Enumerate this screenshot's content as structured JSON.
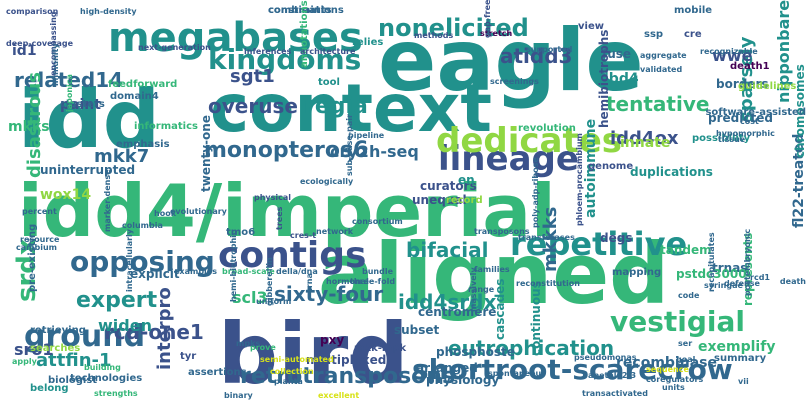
{
  "palette": {
    "dark": "#3b528b",
    "teal": "#21918c",
    "green": "#35b779",
    "blue": "#31688e",
    "purple": "#440154",
    "lime": "#90d743",
    "yellow": "#d8e219"
  },
  "words": [
    {
      "text": "idd4/imperial",
      "color": "#35b779",
      "rot": 0
    },
    {
      "text": "bird",
      "color": "#3b528b",
      "rot": 0
    },
    {
      "text": "aligned",
      "color": "#35b779",
      "rot": 0
    },
    {
      "text": "eagle",
      "color": "#21918c",
      "rot": 0
    },
    {
      "text": "idd",
      "color": "#21918c",
      "rot": 0
    },
    {
      "text": "context",
      "color": "#21918c",
      "rot": 0
    },
    {
      "text": "megabases",
      "color": "#21918c",
      "rot": 0
    },
    {
      "text": "contigs",
      "color": "#3b528b",
      "rot": 0
    },
    {
      "text": "lineage",
      "color": "#3b528b",
      "rot": 0
    },
    {
      "text": "repetitive",
      "color": "#21918c",
      "rot": 0
    },
    {
      "text": "shortroot-scarecrow",
      "color": "#31688e",
      "rot": 0
    },
    {
      "text": "dedicates",
      "color": "#90d743",
      "rot": 0
    },
    {
      "text": "kingdoms",
      "color": "#21918c",
      "rot": 0
    },
    {
      "text": "nonelicited",
      "color": "#21918c",
      "rot": 0
    },
    {
      "text": "ground",
      "color": "#31688e",
      "rot": 0
    },
    {
      "text": "opposing",
      "color": "#31688e",
      "rot": 0
    },
    {
      "text": "vestigial",
      "color": "#35b779",
      "rot": 0
    },
    {
      "text": "srdx",
      "color": "#35b779",
      "rot": -90
    },
    {
      "text": "expert",
      "color": "#21918c",
      "rot": 0
    },
    {
      "text": "monopteros6",
      "color": "#31688e",
      "rot": 0
    },
    {
      "text": "retrotransposons",
      "color": "#31688e",
      "rot": 0
    },
    {
      "text": "eutrophication",
      "color": "#21918c",
      "rot": 0
    },
    {
      "text": "sixty-four",
      "color": "#31688e",
      "rot": 0
    },
    {
      "text": "related14",
      "color": "#31688e",
      "rot": 0
    },
    {
      "text": "idd4srdx",
      "color": "#21918c",
      "rot": 0
    },
    {
      "text": "bifacial",
      "color": "#21918c",
      "rot": 0
    },
    {
      "text": "rcd-one1",
      "color": "#3b528b",
      "rot": 0
    },
    {
      "text": "regia",
      "color": "#21918c",
      "rot": 0
    },
    {
      "text": "overuse",
      "color": "#3b528b",
      "rot": 0
    },
    {
      "text": "tentative",
      "color": "#35b779",
      "rot": 0
    },
    {
      "text": "sparsely",
      "color": "#21918c",
      "rot": -90
    },
    {
      "text": "nipponbare",
      "color": "#21918c",
      "rot": -90
    },
    {
      "text": "atidd3",
      "color": "#3b528b",
      "rot": 0
    },
    {
      "text": "wwe",
      "color": "#3b528b",
      "rot": 0
    },
    {
      "text": "idd4ox",
      "color": "#3b528b",
      "rot": 0
    },
    {
      "text": "mkkks",
      "color": "#31688e",
      "rot": -90
    },
    {
      "text": "interpro",
      "color": "#3b528b",
      "rot": -90
    },
    {
      "text": "disastrous",
      "color": "#35b779",
      "rot": -90
    },
    {
      "text": "cry2h-seq",
      "color": "#31688e",
      "rot": 0
    },
    {
      "text": "sgt1",
      "color": "#3b528b",
      "rot": 0
    },
    {
      "text": "mkk7",
      "color": "#31688e",
      "rot": 0
    },
    {
      "text": "wox14",
      "color": "#90d743",
      "rot": 0
    },
    {
      "text": "widen",
      "color": "#21918c",
      "rot": 0
    },
    {
      "text": "paint",
      "color": "#3b528b",
      "rot": 0
    },
    {
      "text": "scl3",
      "color": "#35b779",
      "rot": 0
    },
    {
      "text": "attfin-1",
      "color": "#21918c",
      "rot": 0
    },
    {
      "text": "sro1",
      "color": "#3b528b",
      "rot": 0
    },
    {
      "text": "lbd4",
      "color": "#21918c",
      "rot": 0
    },
    {
      "text": "mkks",
      "color": "#35b779",
      "rot": 0
    },
    {
      "text": "id1",
      "color": "#3b528b",
      "rot": 0
    },
    {
      "text": "pxy",
      "color": "#440154",
      "rot": 0
    },
    {
      "text": "innate",
      "color": "#90d743",
      "rot": 0
    },
    {
      "text": "autoimmune",
      "color": "#21918c",
      "rot": -90
    },
    {
      "text": "multiplexed",
      "color": "#3b528b",
      "rot": 0
    },
    {
      "text": "trnas",
      "color": "#31688e",
      "rot": 0
    },
    {
      "text": "duplications",
      "color": "#21918c",
      "rot": 0
    },
    {
      "text": "uninterrupted",
      "color": "#31688e",
      "rot": 0
    },
    {
      "text": "pstdc3000",
      "color": "#35b779",
      "rot": 0
    },
    {
      "text": "fl22-treated",
      "color": "#31688e",
      "rot": -90
    },
    {
      "text": "chromosomes",
      "color": "#21918c",
      "rot": -90
    },
    {
      "text": "exemplify",
      "color": "#35b779",
      "rot": 0
    },
    {
      "text": "recombinase",
      "color": "#31688e",
      "rot": 0
    },
    {
      "text": "centromere",
      "color": "#31688e",
      "rot": 0
    },
    {
      "text": "phosphoste",
      "color": "#31688e",
      "rot": 0
    },
    {
      "text": "arranged",
      "color": "#31688e",
      "rot": 0
    },
    {
      "text": "physiology",
      "color": "#31688e",
      "rot": 0
    },
    {
      "text": "cascades",
      "color": "#21918c",
      "rot": -90
    },
    {
      "text": "continuous",
      "color": "#21918c",
      "rot": -90
    },
    {
      "text": "degs",
      "color": "#3b528b",
      "rot": 0
    },
    {
      "text": "tandem",
      "color": "#35b779",
      "rot": 0
    },
    {
      "text": "represents",
      "color": "#35b779",
      "rot": -90
    },
    {
      "text": "summary",
      "color": "#31688e",
      "rot": 0
    },
    {
      "text": "fuse",
      "color": "#31688e",
      "rot": 0
    },
    {
      "text": "borders",
      "color": "#31688e",
      "rot": 0
    },
    {
      "text": "predicted",
      "color": "#31688e",
      "rot": 0
    },
    {
      "text": "genome",
      "color": "#3b528b",
      "rot": 0
    },
    {
      "text": "revolution",
      "color": "#35b779",
      "rot": 0
    },
    {
      "text": "possibility",
      "color": "#21918c",
      "rot": 0
    },
    {
      "text": "hemibiotrophs",
      "color": "#3b528b",
      "rot": -90
    },
    {
      "text": "cre",
      "color": "#3b528b",
      "rot": 0
    },
    {
      "text": "ssp",
      "color": "#31688e",
      "rot": 0
    },
    {
      "text": "view",
      "color": "#3b528b",
      "rot": 0
    },
    {
      "text": "relies",
      "color": "#21918c",
      "rot": 0
    },
    {
      "text": "tool",
      "color": "#21918c",
      "rot": 0
    },
    {
      "text": "feedforward",
      "color": "#35b779",
      "rot": 0
    },
    {
      "text": "clusters",
      "color": "#31688e",
      "rot": 0
    },
    {
      "text": "domain4",
      "color": "#31688e",
      "rot": 0
    },
    {
      "text": "informatics",
      "color": "#35b779",
      "rot": 0
    },
    {
      "text": "emphasis",
      "color": "#31688e",
      "rot": 0
    },
    {
      "text": "twenty-one",
      "color": "#31688e",
      "rot": -90
    },
    {
      "text": "tmo6",
      "color": "#31688e",
      "rot": 0
    },
    {
      "text": "curators",
      "color": "#3b528b",
      "rot": 0
    },
    {
      "text": "unequal",
      "color": "#3b528b",
      "rot": 0
    },
    {
      "text": "record",
      "color": "#90d743",
      "rot": 0
    },
    {
      "text": "en",
      "color": "#21918c",
      "rot": 0
    },
    {
      "text": "subset",
      "color": "#31688e",
      "rot": 0
    },
    {
      "text": "explicit",
      "color": "#31688e",
      "rot": 0
    },
    {
      "text": "tyr",
      "color": "#3b528b",
      "rot": 0
    },
    {
      "text": "mkk-mpk",
      "color": "#3b528b",
      "rot": 0
    },
    {
      "text": "assertions",
      "color": "#31688e",
      "rot": 0
    },
    {
      "text": "biologist",
      "color": "#31688e",
      "rot": 0
    },
    {
      "text": "belong",
      "color": "#21918c",
      "rot": 0
    },
    {
      "text": "technologies",
      "color": "#31688e",
      "rot": 0
    },
    {
      "text": "pre-existing",
      "color": "#31688e",
      "rot": -90
    },
    {
      "text": "searches",
      "color": "#90d743",
      "rot": 0
    },
    {
      "text": "mapping",
      "color": "#31688e",
      "rot": 0
    },
    {
      "text": "death1",
      "color": "#440154",
      "rot": 0
    },
    {
      "text": "guidelines",
      "color": "#90d743",
      "rot": 0
    },
    {
      "text": "software-assisted",
      "color": "#31688e",
      "rot": 0
    },
    {
      "text": "combinations",
      "color": "#31688e",
      "rot": 0
    },
    {
      "text": "constraints",
      "color": "#31688e",
      "rot": 0
    },
    {
      "text": "annotations",
      "color": "#35b779",
      "rot": -90
    },
    {
      "text": "mobile",
      "color": "#31688e",
      "rot": 0
    },
    {
      "text": "retrieving",
      "color": "#31688e",
      "rot": 0
    },
    {
      "text": "comparison",
      "color": "#3b528b",
      "rot": 0
    },
    {
      "text": "deep-coverage",
      "color": "#3b528b",
      "rot": 0
    },
    {
      "text": "next-generation",
      "color": "#3b528b",
      "rot": 0
    },
    {
      "text": "inferences",
      "color": "#3b528b",
      "rot": 0
    },
    {
      "text": "architecture",
      "color": "#3b528b",
      "rot": 0
    },
    {
      "text": "methods",
      "color": "#3b528b",
      "rot": 0
    },
    {
      "text": "stretch",
      "color": "#440154",
      "rot": 0
    },
    {
      "text": "screenings",
      "color": "#31688e",
      "rot": 0
    },
    {
      "text": "supported",
      "color": "#31688e",
      "rot": 0
    },
    {
      "text": "hypomorphic",
      "color": "#31688e",
      "rot": 0
    },
    {
      "text": "cost",
      "color": "#31688e",
      "rot": 0
    },
    {
      "text": "tissue",
      "color": "#31688e",
      "rot": 0
    },
    {
      "text": "aggregate",
      "color": "#31688e",
      "rot": 0
    },
    {
      "text": "validated",
      "color": "#31688e",
      "rot": 0
    },
    {
      "text": "recognizable",
      "color": "#31688e",
      "rot": 0
    },
    {
      "text": "high-density",
      "color": "#31688e",
      "rot": 0
    },
    {
      "text": "gap-free",
      "color": "#3b528b",
      "rot": -90
    },
    {
      "text": "encompassing",
      "color": "#3b528b",
      "rot": -90
    },
    {
      "text": "immunity",
      "color": "#31688e",
      "rot": -90
    },
    {
      "text": "japonica",
      "color": "#35b779",
      "rot": -90
    },
    {
      "text": "resource",
      "color": "#31688e",
      "rot": 0
    },
    {
      "text": "percent",
      "color": "#31688e",
      "rot": 0
    },
    {
      "text": "cambium",
      "color": "#31688e",
      "rot": 0
    },
    {
      "text": "evolutionary",
      "color": "#31688e",
      "rot": 0
    },
    {
      "text": "hook",
      "color": "#31688e",
      "rot": 0
    },
    {
      "text": "physical",
      "color": "#3b528b",
      "rot": 0
    },
    {
      "text": "ecologically",
      "color": "#31688e",
      "rot": 0
    },
    {
      "text": "network",
      "color": "#31688e",
      "rot": 0
    },
    {
      "text": "consortium",
      "color": "#31688e",
      "rot": 0
    },
    {
      "text": "transposons",
      "color": "#31688e",
      "rot": 0
    },
    {
      "text": "transferases",
      "color": "#31688e",
      "rot": 0
    },
    {
      "text": "poly-adp-ribose",
      "color": "#31688e",
      "rot": -90
    },
    {
      "text": "phloem-procambium",
      "color": "#3b528b",
      "rot": -90
    },
    {
      "text": "reconstitution",
      "color": "#31688e",
      "rot": 0
    },
    {
      "text": "families",
      "color": "#31688e",
      "rot": 0
    },
    {
      "text": "three-fold",
      "color": "#31688e",
      "rot": 0
    },
    {
      "text": "hormonal",
      "color": "#31688e",
      "rot": 0
    },
    {
      "text": "della/dna",
      "color": "#31688e",
      "rot": 0
    },
    {
      "text": "broad-scale",
      "color": "#35b779",
      "rot": 0
    },
    {
      "text": "examples",
      "color": "#31688e",
      "rot": 0
    },
    {
      "text": "intracellularly",
      "color": "#31688e",
      "rot": -90
    },
    {
      "text": "apply",
      "color": "#35b779",
      "rot": 0
    },
    {
      "text": "building",
      "color": "#35b779",
      "rot": 0
    },
    {
      "text": "strengths",
      "color": "#35b779",
      "rot": 0
    },
    {
      "text": "prove",
      "color": "#35b779",
      "rot": 0
    },
    {
      "text": "semi-automated",
      "color": "#d8e219",
      "rot": 0
    },
    {
      "text": "collection",
      "color": "#d8e219",
      "rot": 0
    },
    {
      "text": "planta",
      "color": "#31688e",
      "rot": 0
    },
    {
      "text": "binary",
      "color": "#31688e",
      "rot": 0
    },
    {
      "text": "excellent",
      "color": "#d8e219",
      "rot": 0
    },
    {
      "text": "sequence",
      "color": "#d8e219",
      "rot": 0
    },
    {
      "text": "units",
      "color": "#31688e",
      "rot": 0
    },
    {
      "text": "ser",
      "color": "#31688e",
      "rot": 0
    },
    {
      "text": "vii",
      "color": "#31688e",
      "rot": 0
    },
    {
      "text": "goal",
      "color": "#31688e",
      "rot": 0
    },
    {
      "text": "coregulators",
      "color": "#31688e",
      "rot": 0
    },
    {
      "text": "pseudomonas",
      "color": "#31688e",
      "rot": 0
    },
    {
      "text": "transactivated",
      "color": "#31688e",
      "rot": 0
    },
    {
      "text": "spontaneous",
      "color": "#31688e",
      "rot": 0
    },
    {
      "text": "range",
      "color": "#31688e",
      "rot": 0
    },
    {
      "text": "massively",
      "color": "#31688e",
      "rot": -90
    },
    {
      "text": "bundle",
      "color": "#31688e",
      "rot": 0
    },
    {
      "text": "syringae",
      "color": "#31688e",
      "rot": 0
    },
    {
      "text": "defense",
      "color": "#31688e",
      "rot": 0
    },
    {
      "text": "rcd1",
      "color": "#31688e",
      "rot": 0
    },
    {
      "text": "death",
      "color": "#31688e",
      "rot": 0
    },
    {
      "text": "code",
      "color": "#31688e",
      "rot": 0
    },
    {
      "text": "postembryonic",
      "color": "#31688e",
      "rot": -90
    },
    {
      "text": "recapitulates",
      "color": "#31688e",
      "rot": -90
    },
    {
      "text": "cres-t",
      "color": "#3b528b",
      "rot": 0
    },
    {
      "text": "trees",
      "color": "#3b528b",
      "rot": -90
    },
    {
      "text": "trna",
      "color": "#31688e",
      "rot": -90
    },
    {
      "text": "gibberellin",
      "color": "#31688e",
      "rot": -90
    },
    {
      "text": "hemi-biotrophic",
      "color": "#31688e",
      "rot": -90
    },
    {
      "text": "mpks",
      "color": "#31688e",
      "rot": 0
    },
    {
      "text": "uniform",
      "color": "#31688e",
      "rot": 0
    },
    {
      "text": "apetala2.3",
      "color": "#31688e",
      "rot": 0
    },
    {
      "text": "sub-base-pair",
      "color": "#31688e",
      "rot": -90
    },
    {
      "text": "pipeline",
      "color": "#31688e",
      "rot": 0
    },
    {
      "text": "columbia",
      "color": "#31688e",
      "rot": 0
    },
    {
      "text": "marker-dense",
      "color": "#31688e",
      "rot": -90
    }
  ]
}
